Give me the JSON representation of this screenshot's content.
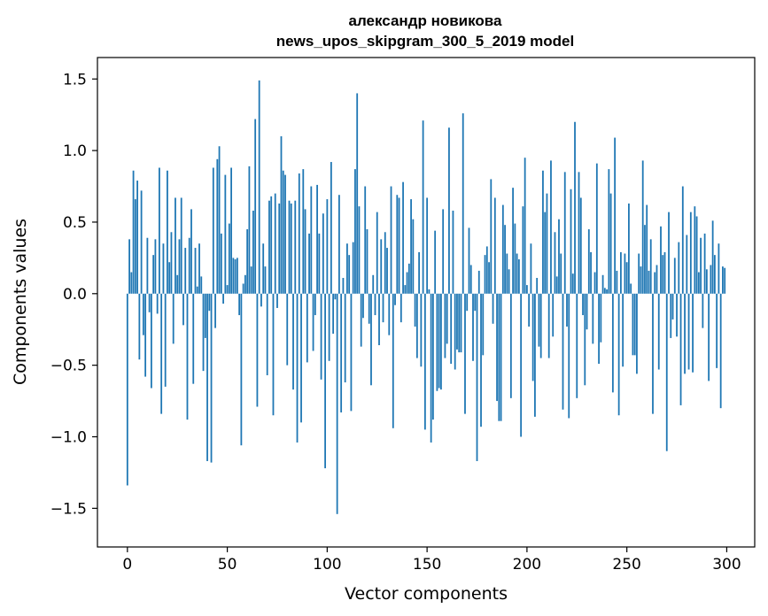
{
  "chart_data": {
    "type": "bar",
    "title": "александр новикова",
    "subtitle": "news_upos_skipgram_300_5_2019 model",
    "xlabel": "Vector components",
    "ylabel": "Components values",
    "xlim": [
      -15,
      314
    ],
    "ylim": [
      -1.77,
      1.65
    ],
    "x_ticks": [
      0,
      50,
      100,
      150,
      200,
      250,
      300
    ],
    "x_tick_labels": [
      "0",
      "50",
      "100",
      "150",
      "200",
      "250",
      "300"
    ],
    "y_ticks": [
      1.5,
      1.0,
      0.5,
      0.0,
      -0.5,
      -1.0,
      -1.5
    ],
    "y_tick_labels": [
      "1.5",
      "1.0",
      "0.5",
      "0.0",
      "−0.5",
      "−1.0",
      "−1.5"
    ],
    "grid": false,
    "bar_color": "#1f77b4",
    "values": [
      -1.34,
      0.38,
      0.15,
      0.86,
      0.66,
      0.79,
      -0.46,
      0.72,
      -0.29,
      -0.58,
      0.39,
      -0.13,
      -0.66,
      0.27,
      0.38,
      -0.14,
      0.88,
      -0.84,
      0.35,
      -0.65,
      0.86,
      0.22,
      0.43,
      -0.35,
      0.67,
      0.13,
      0.38,
      0.67,
      -0.22,
      0.32,
      -0.88,
      0.39,
      0.59,
      -0.63,
      0.32,
      0.05,
      0.35,
      0.12,
      -0.54,
      -0.31,
      -1.17,
      -0.12,
      -1.18,
      0.88,
      -0.24,
      0.94,
      1.03,
      0.42,
      -0.07,
      0.83,
      0.06,
      0.49,
      0.88,
      0.25,
      0.24,
      0.25,
      -0.15,
      -1.06,
      0.07,
      0.13,
      0.45,
      0.89,
      0.19,
      0.58,
      1.22,
      -0.79,
      1.49,
      -0.09,
      0.35,
      0.19,
      -0.57,
      0.65,
      0.68,
      -0.85,
      0.7,
      -0.1,
      0.63,
      1.1,
      0.86,
      0.83,
      -0.5,
      0.65,
      0.63,
      -0.67,
      0.65,
      -1.04,
      0.84,
      -0.9,
      0.87,
      0.59,
      -0.48,
      0.42,
      0.75,
      -0.4,
      -0.15,
      0.76,
      0.42,
      -0.6,
      0.56,
      -1.22,
      0.66,
      -0.47,
      0.92,
      -0.28,
      -0.04,
      -1.54,
      0.69,
      -0.83,
      0.11,
      -0.62,
      0.35,
      0.27,
      -0.82,
      0.36,
      0.87,
      1.4,
      0.61,
      -0.37,
      -0.17,
      0.75,
      0.45,
      -0.21,
      -0.64,
      0.13,
      -0.15,
      0.57,
      -0.36,
      0.38,
      -0.2,
      0.43,
      0.32,
      -0.29,
      0.75,
      -0.94,
      -0.08,
      0.69,
      0.67,
      -0.2,
      0.78,
      0.06,
      0.15,
      0.21,
      0.66,
      0.52,
      -0.23,
      -0.45,
      0.29,
      -0.51,
      1.21,
      -0.95,
      0.67,
      0.03,
      -1.04,
      -0.88,
      0.44,
      -0.68,
      -0.66,
      -0.67,
      0.59,
      -0.45,
      -0.35,
      1.16,
      -0.49,
      0.58,
      -0.53,
      -0.39,
      -0.41,
      -0.41,
      1.26,
      -0.84,
      -0.12,
      0.46,
      0.2,
      -0.47,
      -0.12,
      -1.17,
      0.16,
      -0.93,
      -0.43,
      0.27,
      0.33,
      0.22,
      0.8,
      -0.21,
      0.67,
      -0.75,
      -0.89,
      -0.89,
      0.62,
      0.48,
      0.28,
      0.17,
      -0.73,
      0.74,
      0.49,
      0.28,
      0.24,
      -1.0,
      0.61,
      0.95,
      0.06,
      -0.23,
      0.35,
      -0.61,
      -0.86,
      0.11,
      -0.37,
      -0.45,
      0.86,
      0.57,
      0.7,
      -0.45,
      0.93,
      -0.3,
      0.43,
      0.12,
      0.52,
      0.28,
      -0.81,
      0.85,
      -0.23,
      -0.87,
      0.73,
      0.14,
      1.2,
      -0.73,
      0.85,
      0.67,
      -0.15,
      -0.64,
      -0.25,
      0.45,
      0.29,
      -0.35,
      0.15,
      0.91,
      -0.49,
      -0.34,
      0.13,
      0.04,
      0.03,
      0.87,
      0.7,
      -0.69,
      1.09,
      0.16,
      -0.85,
      0.29,
      -0.51,
      0.28,
      0.22,
      0.63,
      0.07,
      -0.43,
      -0.43,
      -0.56,
      0.28,
      0.19,
      0.93,
      0.48,
      0.62,
      0.16,
      0.38,
      -0.84,
      0.15,
      0.2,
      -0.53,
      0.47,
      0.27,
      0.29,
      -1.1,
      0.57,
      -0.31,
      -0.18,
      0.25,
      -0.3,
      0.36,
      -0.78,
      0.75,
      -0.56,
      0.41,
      -0.53,
      0.57,
      -0.55,
      0.61,
      0.54,
      0.15,
      0.39,
      -0.24,
      0.42,
      0.17,
      -0.61,
      0.2,
      0.51,
      0.27,
      -0.52,
      0.35,
      -0.8,
      0.19,
      0.18
    ]
  }
}
